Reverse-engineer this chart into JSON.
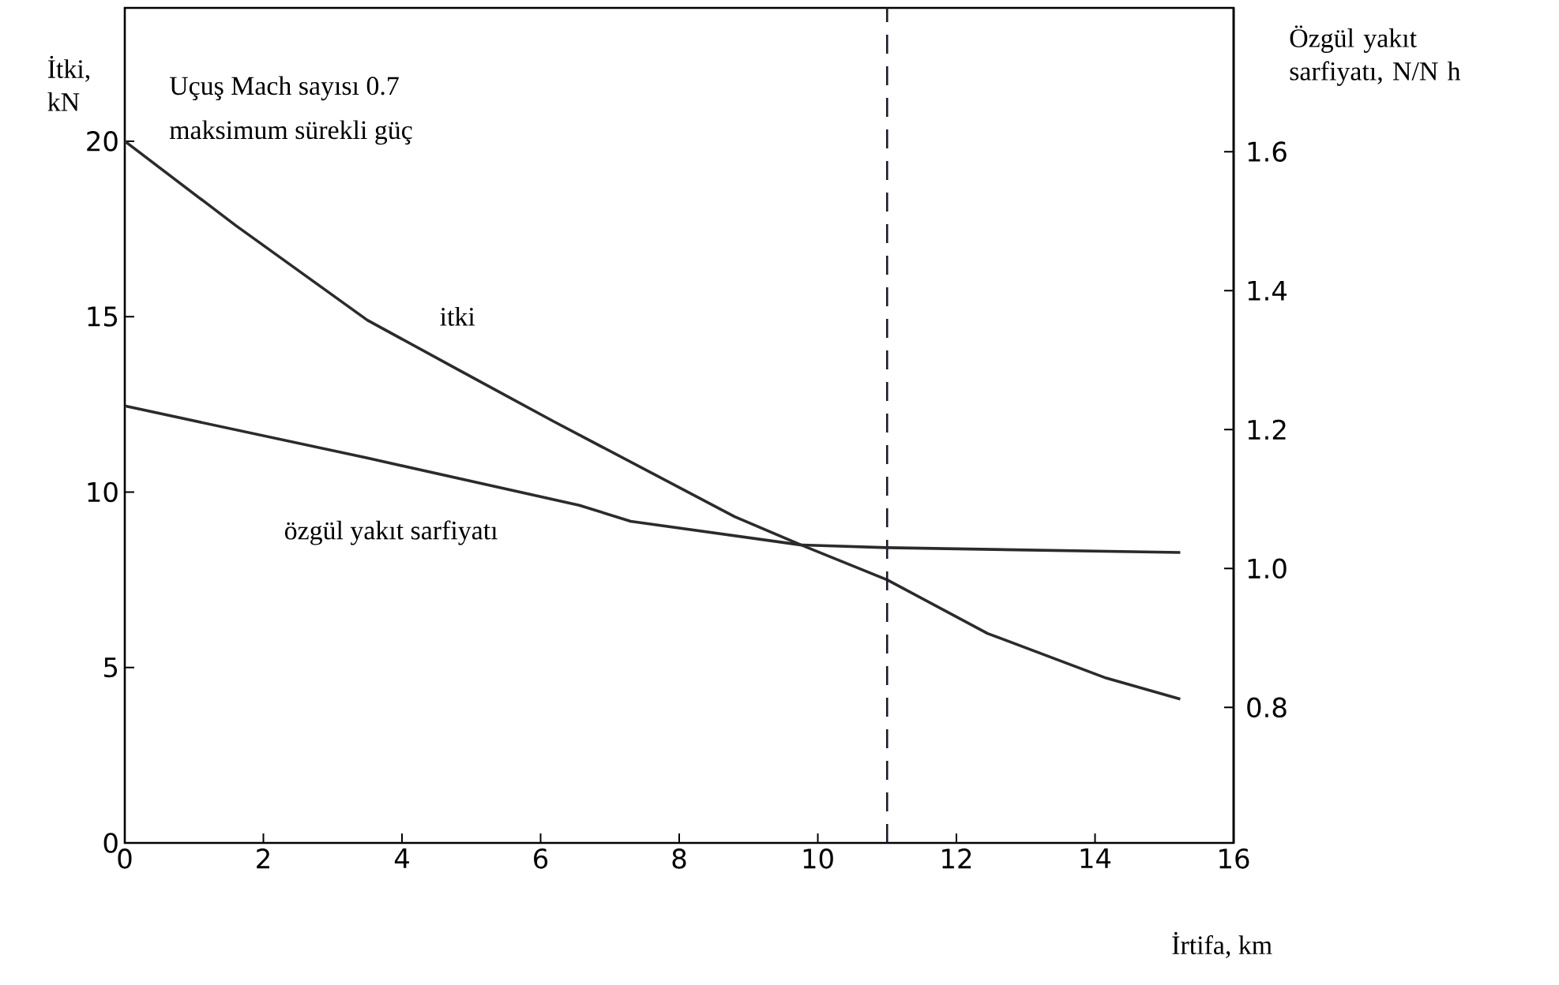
{
  "chart_data": {
    "type": "line",
    "xlabel": "İrtifa, km",
    "ylabel": "İtki, kN",
    "y2label": "Özgül yakıt sarfiyatı, N/N h",
    "annotations": [
      "Uçuş Mach sayısı 0.7",
      "maksimum sürekli güç"
    ],
    "xlim": [
      0,
      16
    ],
    "xticks": [
      0,
      2,
      4,
      6,
      8,
      10,
      12,
      14,
      16
    ],
    "ylim": [
      0,
      23.8
    ],
    "yticks": [
      0,
      5,
      10,
      15,
      20
    ],
    "y2lim": [
      0.605,
      1.807
    ],
    "y2ticks": [
      {
        "value": 0.8,
        "label": "0.8"
      },
      {
        "value": 1.0,
        "label": "1.0"
      },
      {
        "value": 1.2,
        "label": "1.2"
      },
      {
        "value": 1.4,
        "label": "1.4"
      },
      {
        "value": 1.6,
        "label": "1.6"
      }
    ],
    "line_style": "solid",
    "series": [
      {
        "name": "itki",
        "color": "#2b2b2b",
        "x": [
          0,
          1.6,
          3.5,
          4.8,
          6.2,
          8.8,
          9.75,
          11,
          12.45,
          14.16,
          15.23
        ],
        "values": [
          20,
          17.6,
          14.9,
          13.5,
          12.0,
          9.3,
          8.5,
          7.5,
          5.97,
          4.7,
          4.1
        ]
      },
      {
        "name": "özgül yakıt sarfiyatı",
        "color": "#2b2b2b",
        "axis": "y2",
        "x": [
          0,
          3.5,
          6.56,
          7.3,
          9.75,
          11,
          15.23
        ],
        "values": [
          1.234,
          1.159,
          1.091,
          1.068,
          1.034,
          1.03,
          1.023
        ]
      }
    ],
    "ref_lines": [
      {
        "axis": "x",
        "value": 11,
        "line_style": "dashed",
        "color": "#1a1a2a"
      }
    ]
  }
}
